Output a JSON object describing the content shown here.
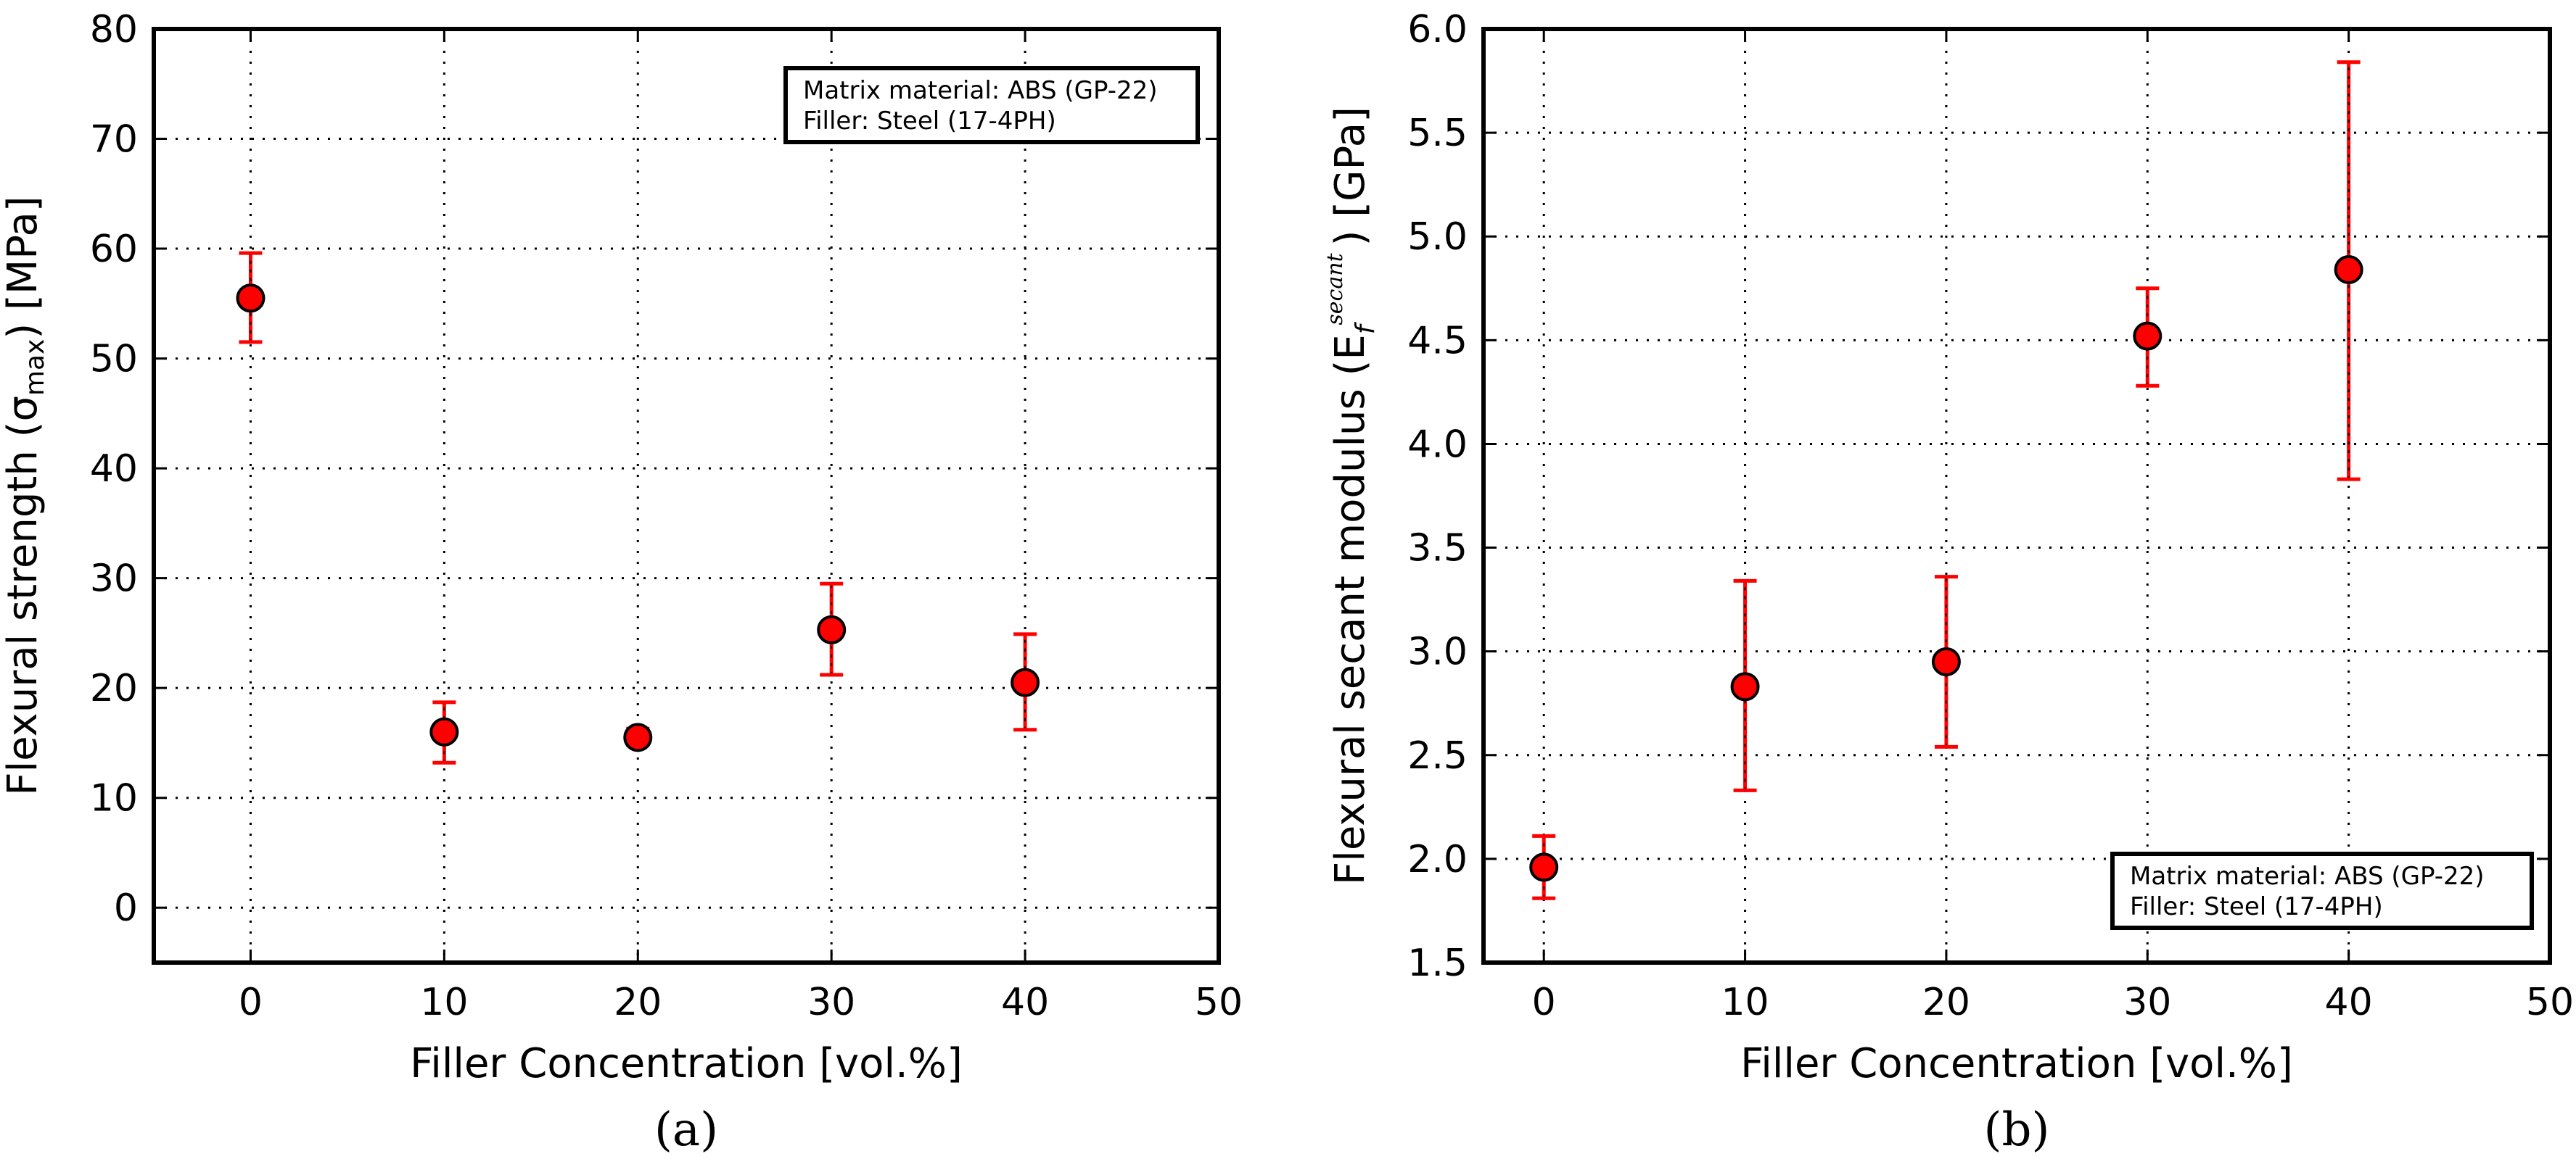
{
  "chart_data": [
    {
      "type": "scatter",
      "panel": "a",
      "caption": "(a)",
      "xlabel": "Filler Concentration [vol.%]",
      "ylabel": "Flexural strength (σmax) [MPa]",
      "ylabel_parts": {
        "prefix": "Flexural strength (σ",
        "sub": "max",
        "suffix": ") [MPa]"
      },
      "xlim": [
        -5,
        50
      ],
      "ylim": [
        -5,
        80
      ],
      "xticks": [
        0,
        10,
        20,
        30,
        40,
        50
      ],
      "yticks": [
        0,
        10,
        20,
        30,
        40,
        50,
        60,
        70,
        80
      ],
      "grid": true,
      "legend_position": "top-right",
      "legend": [
        "Matrix material: ABS (GP-22)",
        "Filler: Steel (17-4PH)"
      ],
      "series": [
        {
          "name": "Flexural strength",
          "color": "#ff0000",
          "x": [
            0,
            10,
            20,
            30,
            40
          ],
          "y": [
            55.5,
            16.0,
            15.5,
            25.3,
            20.5
          ],
          "err_low": [
            51.5,
            13.2,
            14.8,
            21.2,
            16.2
          ],
          "err_high": [
            59.6,
            18.7,
            16.3,
            29.5,
            24.9
          ]
        }
      ]
    },
    {
      "type": "scatter",
      "panel": "b",
      "caption": "(b)",
      "xlabel": "Filler Concentration [vol.%]",
      "ylabel": "Flexural secant modulus (Ef secant) [GPa]",
      "ylabel_parts": {
        "prefix": "Flexural secant modulus (E",
        "sub": "f",
        "sup": "secant",
        "suffix": ") [GPa]"
      },
      "xlim": [
        -3,
        50
      ],
      "ylim": [
        1.5,
        6.0
      ],
      "xticks": [
        0,
        10,
        20,
        30,
        40,
        50
      ],
      "yticks": [
        1.5,
        2.0,
        2.5,
        3.0,
        3.5,
        4.0,
        4.5,
        5.0,
        5.5,
        6.0
      ],
      "grid": true,
      "legend_position": "bottom-right",
      "legend": [
        "Matrix material: ABS (GP-22)",
        "Filler: Steel (17-4PH)"
      ],
      "series": [
        {
          "name": "Flexural secant modulus",
          "color": "#ff0000",
          "x": [
            0,
            10,
            20,
            30,
            40
          ],
          "y": [
            1.96,
            2.83,
            2.95,
            4.52,
            4.84
          ],
          "err_low": [
            1.81,
            2.33,
            2.54,
            4.28,
            3.83
          ],
          "err_high": [
            2.11,
            3.34,
            3.36,
            4.75,
            5.84
          ]
        }
      ]
    }
  ]
}
